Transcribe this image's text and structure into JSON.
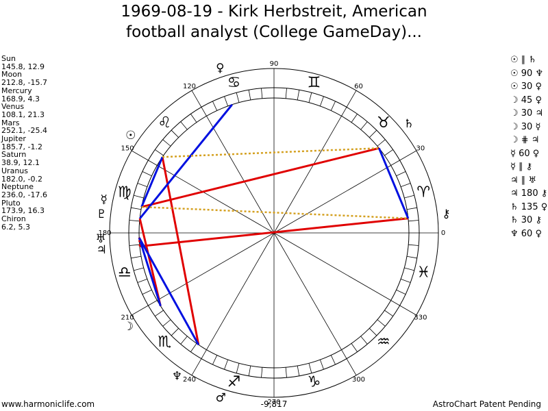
{
  "header": {
    "title_lines": [
      "1969-08-19 - Kirk Herbstreit, American",
      "football analyst (College GameDay)..."
    ]
  },
  "planets": [
    {
      "name": "Sun",
      "position": "145.8, 12.9",
      "glyph": "☉"
    },
    {
      "name": "Moon",
      "position": "212.8, -15.7",
      "glyph": "☽"
    },
    {
      "name": "Mercury",
      "position": "168.9, 4.3",
      "glyph": "☿"
    },
    {
      "name": "Venus",
      "position": "108.1, 21.3",
      "glyph": "♀"
    },
    {
      "name": "Mars",
      "position": "252.1, -25.4",
      "glyph": "♂"
    },
    {
      "name": "Jupiter",
      "position": "185.7, -1.2",
      "glyph": "♃"
    },
    {
      "name": "Saturn",
      "position": "38.9, 12.1",
      "glyph": "♄"
    },
    {
      "name": "Uranus",
      "position": "182.0, -0.2",
      "glyph": "♅"
    },
    {
      "name": "Neptune",
      "position": "236.0, -17.6",
      "glyph": "♆"
    },
    {
      "name": "Pluto",
      "position": "173.9, 16.3",
      "glyph": "♇"
    },
    {
      "name": "Chiron",
      "position": "6.2, 5.3",
      "glyph": "⚷"
    }
  ],
  "aspects": [
    "☉ ∥ ♄",
    "☉ 90 ♆",
    "☉ 30 ♀",
    "☽ 45 ♀",
    "☽ 30 ♃",
    "☽ 30 ☿",
    "☽ ⋕ ♃",
    "☿ 60 ♀",
    "☿ ∥ ⚷",
    "♃ ∥ ♅",
    "♃ 180 ⚷",
    "♄ 135 ♀",
    "♄ 30 ⚷",
    "♆ 60 ♀"
  ],
  "signs": [
    "♈",
    "♉",
    "♊",
    "♋",
    "♌",
    "♍",
    "♎",
    "♏",
    "♐",
    "♑",
    "♒",
    "♓"
  ],
  "degree_labels": [
    "0",
    "30",
    "60",
    "90",
    "120",
    "150",
    "180",
    "210",
    "240",
    "270",
    "300",
    "330"
  ],
  "footer": {
    "site": "www.harmoniclife.com",
    "score": "-9,817",
    "notice": "AstroChart Patent Pending"
  }
}
